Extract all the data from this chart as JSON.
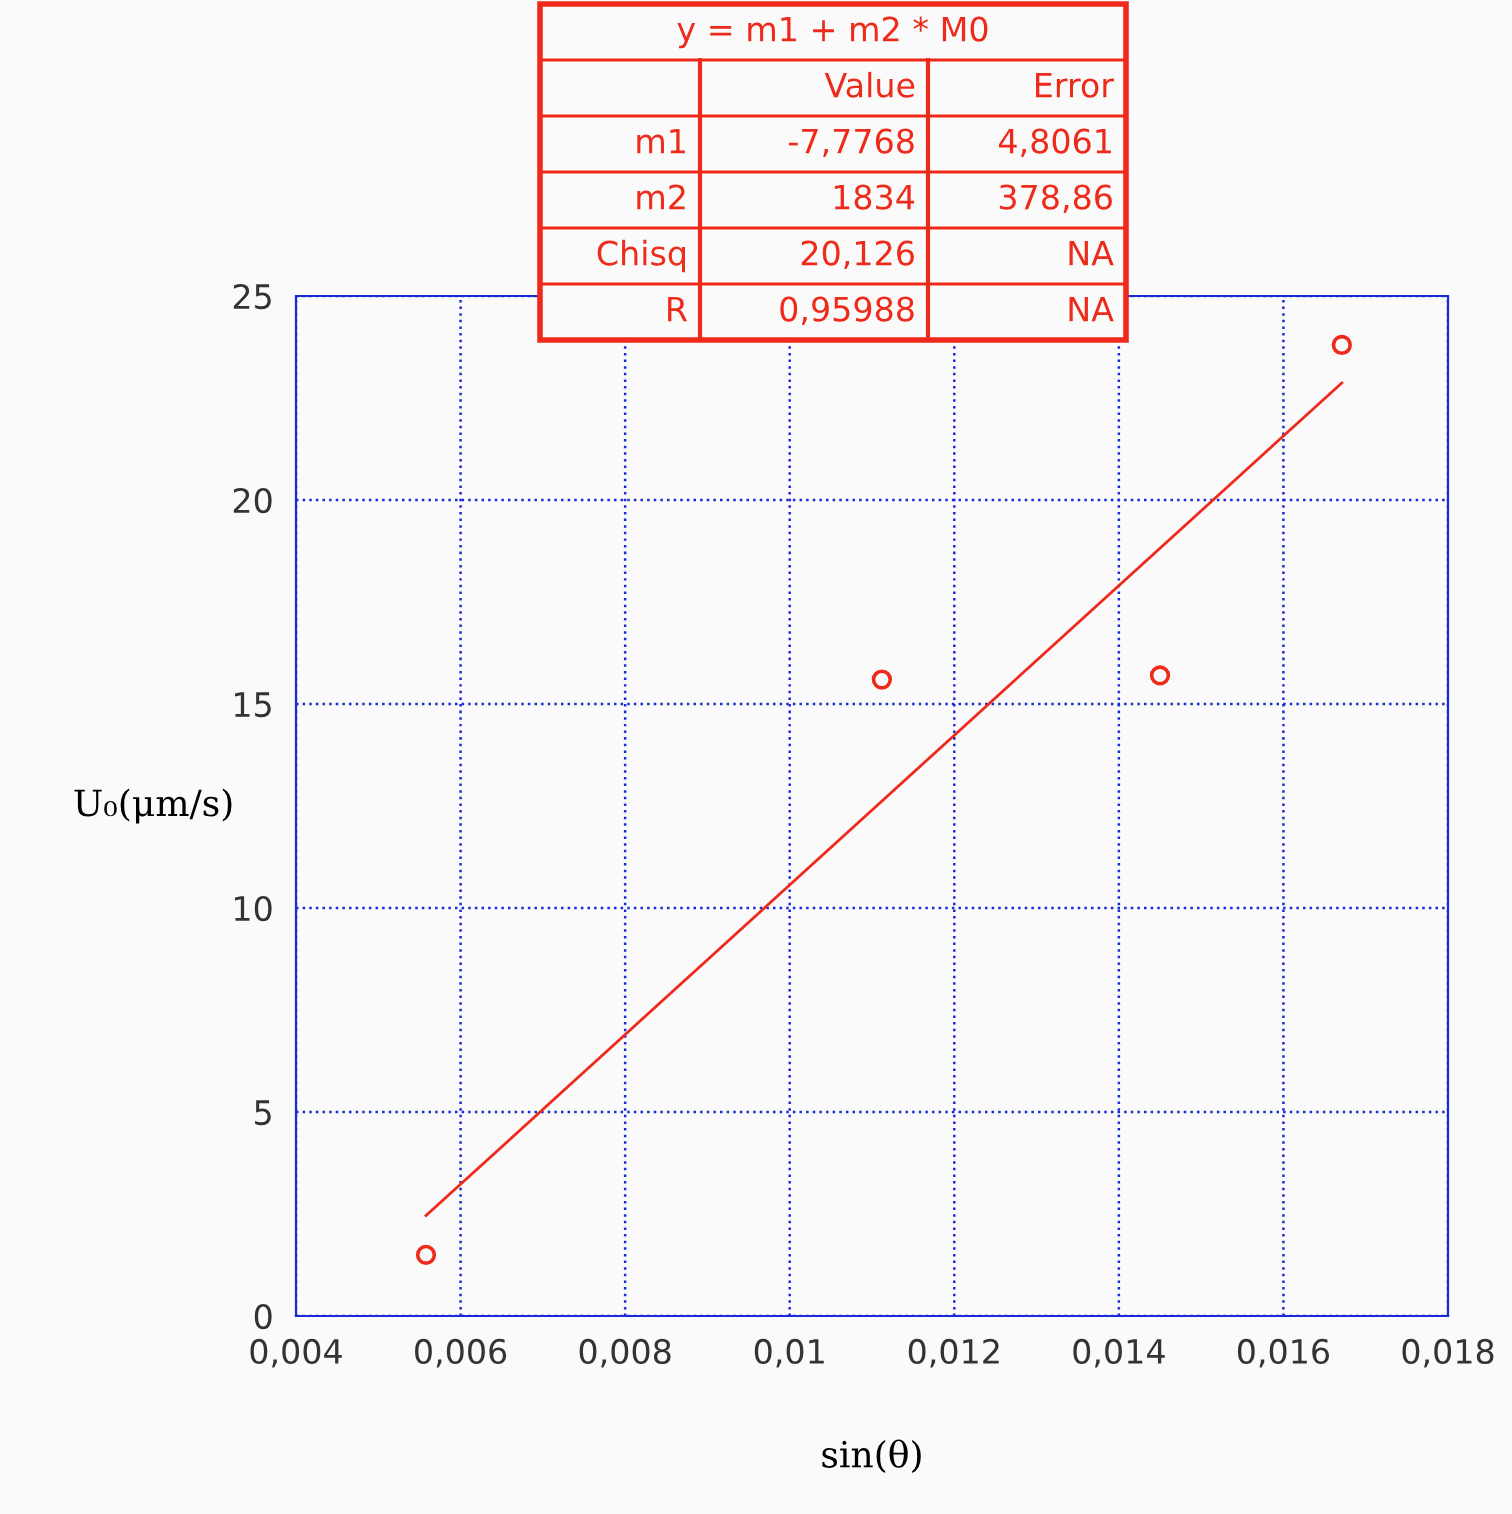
{
  "chart_data": {
    "type": "scatter",
    "xlabel": "sin(θ)",
    "ylabel": "U₀(μm/s)",
    "xlim": [
      0.004,
      0.018
    ],
    "ylim": [
      0,
      25
    ],
    "xticks": [
      {
        "value": 0.004,
        "label": "0,004"
      },
      {
        "value": 0.006,
        "label": "0,006"
      },
      {
        "value": 0.008,
        "label": "0,008"
      },
      {
        "value": 0.01,
        "label": "0,01"
      },
      {
        "value": 0.012,
        "label": "0,012"
      },
      {
        "value": 0.014,
        "label": "0,014"
      },
      {
        "value": 0.016,
        "label": "0,016"
      },
      {
        "value": 0.018,
        "label": "0,018"
      }
    ],
    "yticks": [
      0,
      5,
      10,
      15,
      20,
      25
    ],
    "grid": true,
    "series": [
      {
        "marker": "circle",
        "color": "#ee2a1a",
        "x": [
          0.00558,
          0.01112,
          0.0145,
          0.01671
        ],
        "values": [
          1.5,
          15.6,
          15.7,
          23.8
        ]
      },
      {
        "type": "line",
        "color": "#ee2a1a",
        "x": [
          0.00558,
          0.01671
        ],
        "values": [
          2.46,
          22.87
        ]
      }
    ],
    "annotations": [
      "y = m1 + m2 * M0",
      "Value",
      "Error",
      "m1",
      "-7,7768",
      "4,8061",
      "m2",
      "1834",
      "378,86",
      "Chisq",
      "20,126",
      "NA",
      "R",
      "0,95988",
      "NA"
    ]
  }
}
